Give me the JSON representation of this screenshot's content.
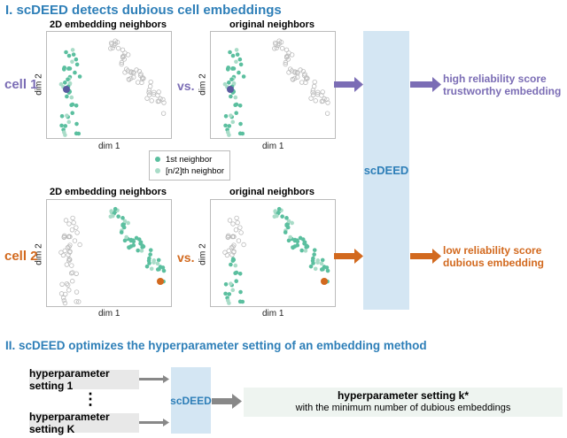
{
  "section1": {
    "title": "I. scDEED detects dubious cell embeddings"
  },
  "plots": {
    "embedding_title": "2D embedding neighbors",
    "original_title": "original neighbors",
    "xlabel": "dim 1",
    "ylabel": "dim 2"
  },
  "rows": [
    {
      "label": "cell 1",
      "vs": "vs.",
      "color": "#7b6db5",
      "result": [
        "high reliability score",
        "trustworthy embedding"
      ]
    },
    {
      "label": "cell 2",
      "vs": "vs.",
      "color": "#d2691e",
      "result": [
        "low reliability score",
        "dubious embedding"
      ]
    }
  ],
  "legend": {
    "items": [
      {
        "label": "1st neighbor",
        "color": "#5bbf9f"
      },
      {
        "label": "[n/2]th neighbor",
        "color": "#a9dcc8"
      }
    ]
  },
  "method": "scDEED",
  "section2": {
    "title": "II. scDEED optimizes the hyperparameter setting of an embedding method",
    "inputs": [
      "hyperparameter setting 1",
      "hyperparameter setting K"
    ],
    "ellipsis": "⋮",
    "output_title": "hyperparameter setting k*",
    "output_sub": "with the minimum number of dubious embeddings"
  },
  "colors": {
    "accent": "#2e7fb8",
    "box": "#d4e6f3",
    "neighbor": "#5bbf9f",
    "hollow": "#bbbbbb",
    "arrow": "#888888"
  }
}
